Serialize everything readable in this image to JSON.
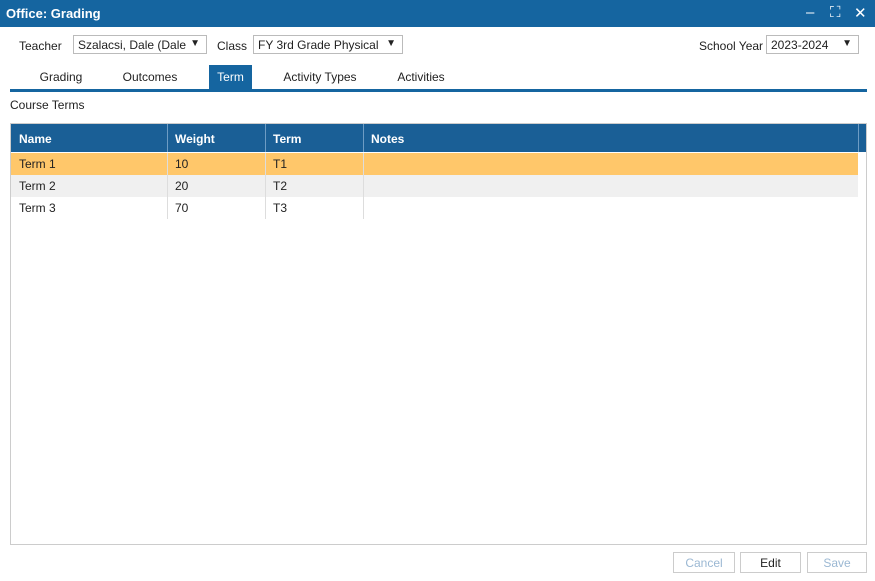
{
  "window": {
    "title": "Office: Grading"
  },
  "filters": {
    "teacher_label": "Teacher",
    "teacher": "Szalacsi, Dale (Dale",
    "class_label": "Class",
    "class": "FY 3rd Grade Physical",
    "school_year_label": "School Year",
    "school_year": "2023-2024"
  },
  "tabs": [
    {
      "label": "Grading",
      "active": false
    },
    {
      "label": "Outcomes",
      "active": false
    },
    {
      "label": "Term",
      "active": true
    },
    {
      "label": "Activity Types",
      "active": false
    },
    {
      "label": "Activities",
      "active": false
    }
  ],
  "section_title": "Course Terms",
  "table": {
    "columns": [
      "Name",
      "Weight",
      "Term",
      "Notes"
    ],
    "rows": [
      [
        "Term 1",
        10,
        "T1"
      ],
      [
        "Term 2",
        20,
        "T2"
      ],
      [
        "Term 3",
        70,
        "T3"
      ]
    ],
    "selected_row": 0
  },
  "buttons": [
    {
      "label": "Cancel",
      "enabled": false
    },
    {
      "label": "Edit",
      "enabled": true
    },
    {
      "label": "Save",
      "enabled": false
    }
  ]
}
